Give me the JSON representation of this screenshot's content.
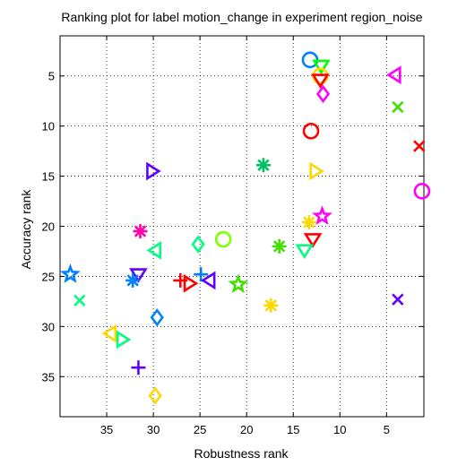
{
  "chart_data": {
    "type": "scatter",
    "title": "Ranking plot for label motion_change in experiment region_noise",
    "xlabel": "Robustness rank",
    "ylabel": "Accuracy rank",
    "xlim": [
      40,
      1
    ],
    "ylim": [
      39,
      1
    ],
    "x_reversed": true,
    "y_reversed": true,
    "xticks": [
      35,
      30,
      25,
      20,
      15,
      10,
      5
    ],
    "yticks": [
      5,
      10,
      15,
      20,
      25,
      30,
      35
    ],
    "grid": "dotted",
    "points": [
      {
        "x": 13.2,
        "y": 3.4,
        "marker": "circle",
        "color": "#0080ff"
      },
      {
        "x": 12.0,
        "y": 4.0,
        "marker": "triangle-down",
        "color": "#00ff00"
      },
      {
        "x": 12.1,
        "y": 5.0,
        "marker": "circle",
        "color": "#ffd700"
      },
      {
        "x": 12.1,
        "y": 5.4,
        "marker": "triangle-down",
        "color": "#ff0000"
      },
      {
        "x": 11.8,
        "y": 6.8,
        "marker": "diamond",
        "color": "#ff00ff"
      },
      {
        "x": 4.1,
        "y": 4.9,
        "marker": "triangle-left",
        "color": "#ff00ff"
      },
      {
        "x": 3.8,
        "y": 8.1,
        "marker": "x",
        "color": "#40e000"
      },
      {
        "x": 13.1,
        "y": 10.5,
        "marker": "circle",
        "color": "#ff0000"
      },
      {
        "x": 1.5,
        "y": 12.0,
        "marker": "x",
        "color": "#ff0000"
      },
      {
        "x": 18.2,
        "y": 13.9,
        "marker": "asterisk",
        "color": "#00c060"
      },
      {
        "x": 12.6,
        "y": 14.5,
        "marker": "triangle-right",
        "color": "#ffd700"
      },
      {
        "x": 30.1,
        "y": 14.5,
        "marker": "triangle-right",
        "color": "#6000ff"
      },
      {
        "x": 1.2,
        "y": 16.5,
        "marker": "circle",
        "color": "#ff00ff"
      },
      {
        "x": 11.9,
        "y": 19.0,
        "marker": "star",
        "color": "#ff00ff"
      },
      {
        "x": 13.3,
        "y": 19.6,
        "marker": "asterisk",
        "color": "#ffd700"
      },
      {
        "x": 31.4,
        "y": 20.5,
        "marker": "asterisk",
        "color": "#ff00aa"
      },
      {
        "x": 22.5,
        "y": 21.3,
        "marker": "circle",
        "color": "#80ff00"
      },
      {
        "x": 25.2,
        "y": 21.8,
        "marker": "diamond",
        "color": "#00ff80"
      },
      {
        "x": 12.9,
        "y": 21.3,
        "marker": "triangle-down",
        "color": "#ff0000"
      },
      {
        "x": 16.5,
        "y": 22.0,
        "marker": "asterisk",
        "color": "#40e000"
      },
      {
        "x": 13.8,
        "y": 22.4,
        "marker": "triangle-down",
        "color": "#00ff80"
      },
      {
        "x": 29.8,
        "y": 22.4,
        "marker": "triangle-left",
        "color": "#00ff80"
      },
      {
        "x": 38.9,
        "y": 24.8,
        "marker": "star",
        "color": "#0080ff"
      },
      {
        "x": 31.6,
        "y": 24.8,
        "marker": "triangle-down",
        "color": "#6000ff"
      },
      {
        "x": 24.9,
        "y": 24.8,
        "marker": "plus",
        "color": "#0080ff"
      },
      {
        "x": 32.2,
        "y": 25.4,
        "marker": "asterisk",
        "color": "#0080ff"
      },
      {
        "x": 27.1,
        "y": 25.4,
        "marker": "plus",
        "color": "#ff0000"
      },
      {
        "x": 26.1,
        "y": 25.7,
        "marker": "triangle-right",
        "color": "#ff0000"
      },
      {
        "x": 24.0,
        "y": 25.4,
        "marker": "triangle-left",
        "color": "#6000ff"
      },
      {
        "x": 20.9,
        "y": 25.8,
        "marker": "star",
        "color": "#40e000"
      },
      {
        "x": 37.9,
        "y": 27.4,
        "marker": "x",
        "color": "#00ff80"
      },
      {
        "x": 3.8,
        "y": 27.3,
        "marker": "x",
        "color": "#6000ff"
      },
      {
        "x": 17.4,
        "y": 27.9,
        "marker": "asterisk",
        "color": "#ffd700"
      },
      {
        "x": 29.6,
        "y": 29.1,
        "marker": "diamond",
        "color": "#0080ff"
      },
      {
        "x": 34.6,
        "y": 30.7,
        "marker": "triangle-left",
        "color": "#ffd700"
      },
      {
        "x": 33.3,
        "y": 31.3,
        "marker": "triangle-right",
        "color": "#00ff80"
      },
      {
        "x": 31.6,
        "y": 34.1,
        "marker": "plus",
        "color": "#6000ff"
      },
      {
        "x": 29.8,
        "y": 36.9,
        "marker": "diamond",
        "color": "#ffd700"
      }
    ]
  }
}
